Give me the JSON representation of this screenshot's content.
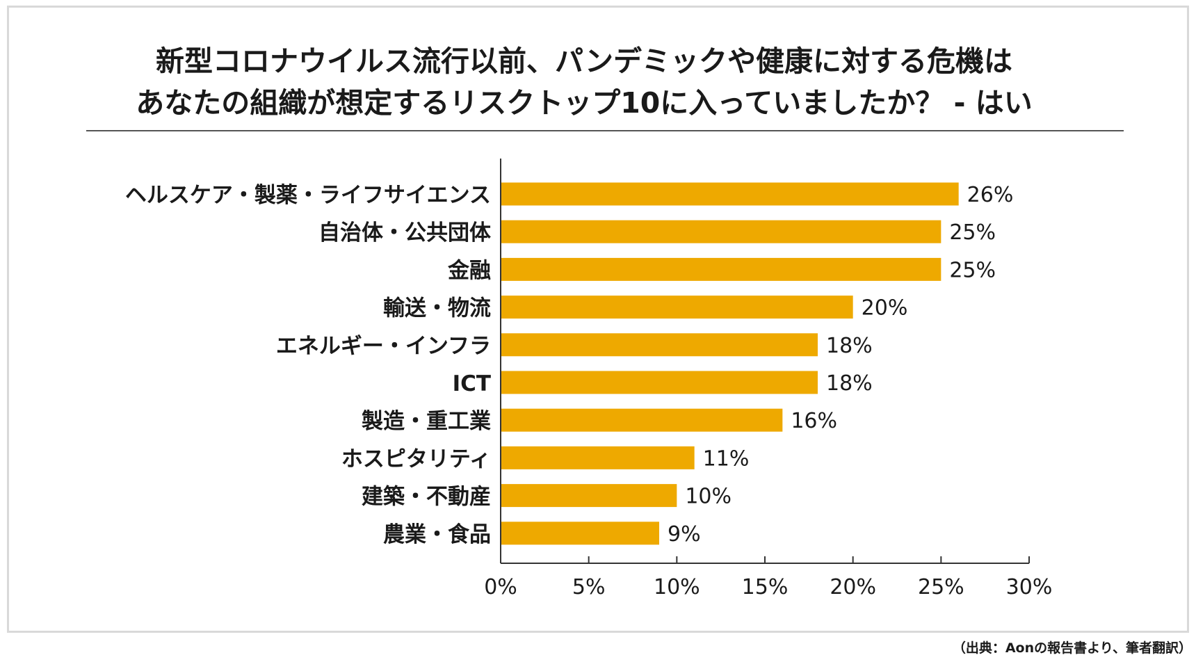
{
  "title": {
    "line1": "新型コロナウイルス流行以前、パンデミックや健康に対する危機は",
    "line2": "あなたの組織が想定するリスクトップ10に入っていましたか？ - はい"
  },
  "source": "（出典：Aonの報告書より、筆者翻訳）",
  "colors": {
    "bar": "#EEA900",
    "axis": "#333333",
    "text": "#1a1a1a"
  },
  "chart_data": {
    "type": "bar",
    "orientation": "horizontal",
    "categories": [
      "ヘルスケア・製薬・ライフサイエンス",
      "自治体・公共団体",
      "金融",
      "輸送・物流",
      "エネルギー・インフラ",
      "ICT",
      "製造・重工業",
      "ホスピタリティ",
      "建築・不動産",
      "農業・食品"
    ],
    "values": [
      26,
      25,
      25,
      20,
      18,
      18,
      16,
      11,
      10,
      9
    ],
    "value_labels": [
      "26%",
      "25%",
      "25%",
      "20%",
      "18%",
      "18%",
      "16%",
      "11%",
      "10%",
      "9%"
    ],
    "xlim": [
      0,
      30
    ],
    "xticks": [
      0,
      5,
      10,
      15,
      20,
      25,
      30
    ],
    "xtick_labels": [
      "0%",
      "5%",
      "10%",
      "15%",
      "20%",
      "25%",
      "30%"
    ],
    "xlabel": "",
    "ylabel": "",
    "grid": false,
    "legend": "none"
  }
}
